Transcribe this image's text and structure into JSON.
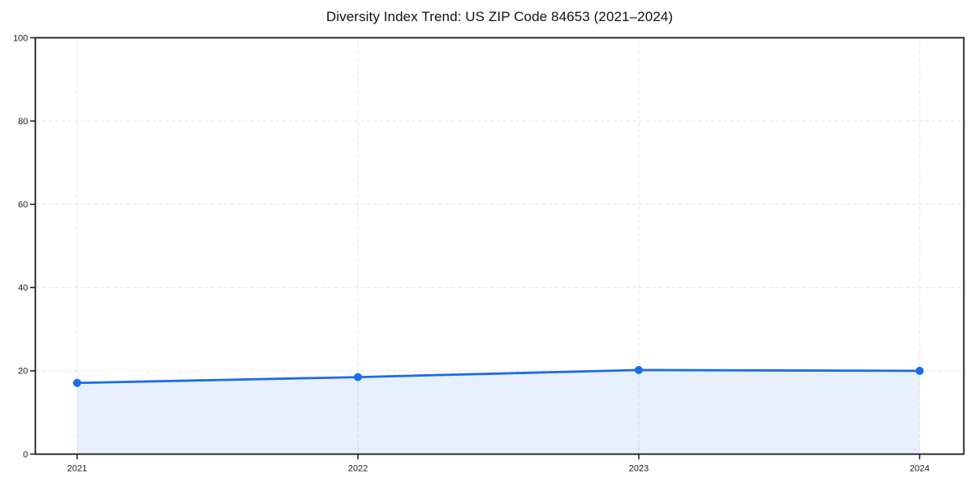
{
  "page": {
    "background": "#ffffff"
  },
  "chart_data": {
    "type": "line",
    "subtype": "area-filled-line-with-markers",
    "title": "Diversity Index Trend: US ZIP Code 84653 (2021–2024)",
    "x": [
      "2021",
      "2022",
      "2023",
      "2024"
    ],
    "series": [
      {
        "name": "Diversity Index",
        "values": [
          17.1,
          18.5,
          20.2,
          20.0
        ]
      }
    ],
    "xlabel": "",
    "ylabel": "",
    "ylim": [
      0,
      100
    ],
    "yticks": [
      0,
      20,
      40,
      60,
      80,
      100
    ],
    "grid": true,
    "grid_style": "dashed",
    "legend_position": "none",
    "line_color": "#1b6ce8",
    "marker": "circle",
    "fill_color": "rgba(27,108,232,0.10)",
    "grid_color": "#e4e4e4",
    "spine_color": "#1a1a1a",
    "text_color": "#1a1a1a"
  }
}
